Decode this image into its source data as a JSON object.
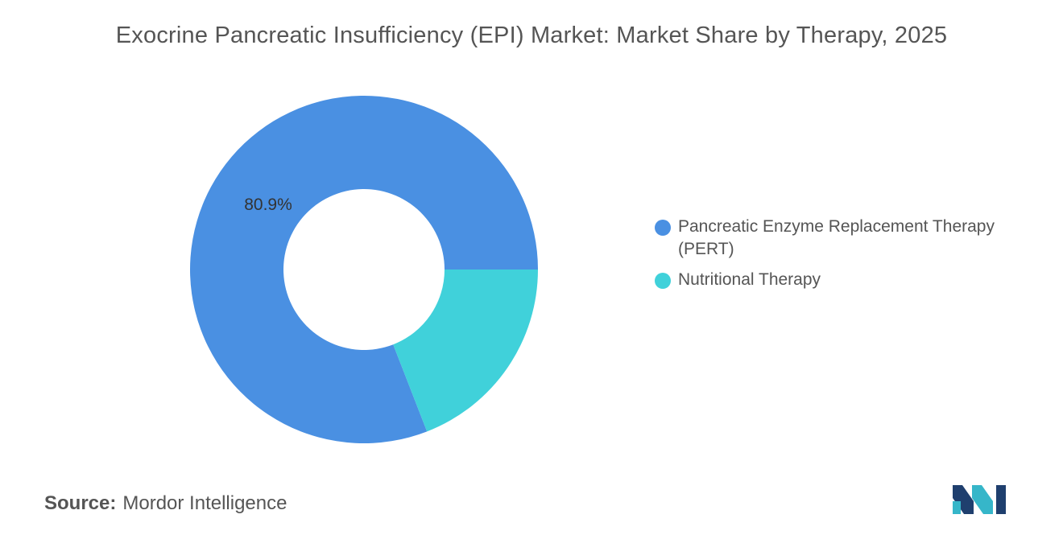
{
  "title": "Exocrine Pancreatic Insufficiency (EPI) Market: Market Share by Therapy, 2025",
  "chart_data": {
    "type": "pie",
    "donut": true,
    "title": "Exocrine Pancreatic Insufficiency (EPI) Market: Market Share by Therapy, 2025",
    "categories": [
      "Pancreatic Enzyme Replacement Therapy (PERT)",
      "Nutritional Therapy"
    ],
    "values": [
      80.9,
      19.1
    ],
    "unit": "%",
    "data_labels": [
      "80.9%",
      ""
    ],
    "colors": [
      "#4a90e2",
      "#40d1da"
    ],
    "legend_placement": "right"
  },
  "legend": [
    {
      "label": "Pancreatic Enzyme Replacement Therapy (PERT)",
      "color": "#4a90e2"
    },
    {
      "label": "Nutritional Therapy",
      "color": "#40d1da"
    }
  ],
  "source": {
    "key": "Source:",
    "value": "Mordor Intelligence"
  },
  "logo": {
    "icon": "mordor-intelligence-logo",
    "colors": [
      "#1f3f6e",
      "#36b6c9"
    ]
  }
}
